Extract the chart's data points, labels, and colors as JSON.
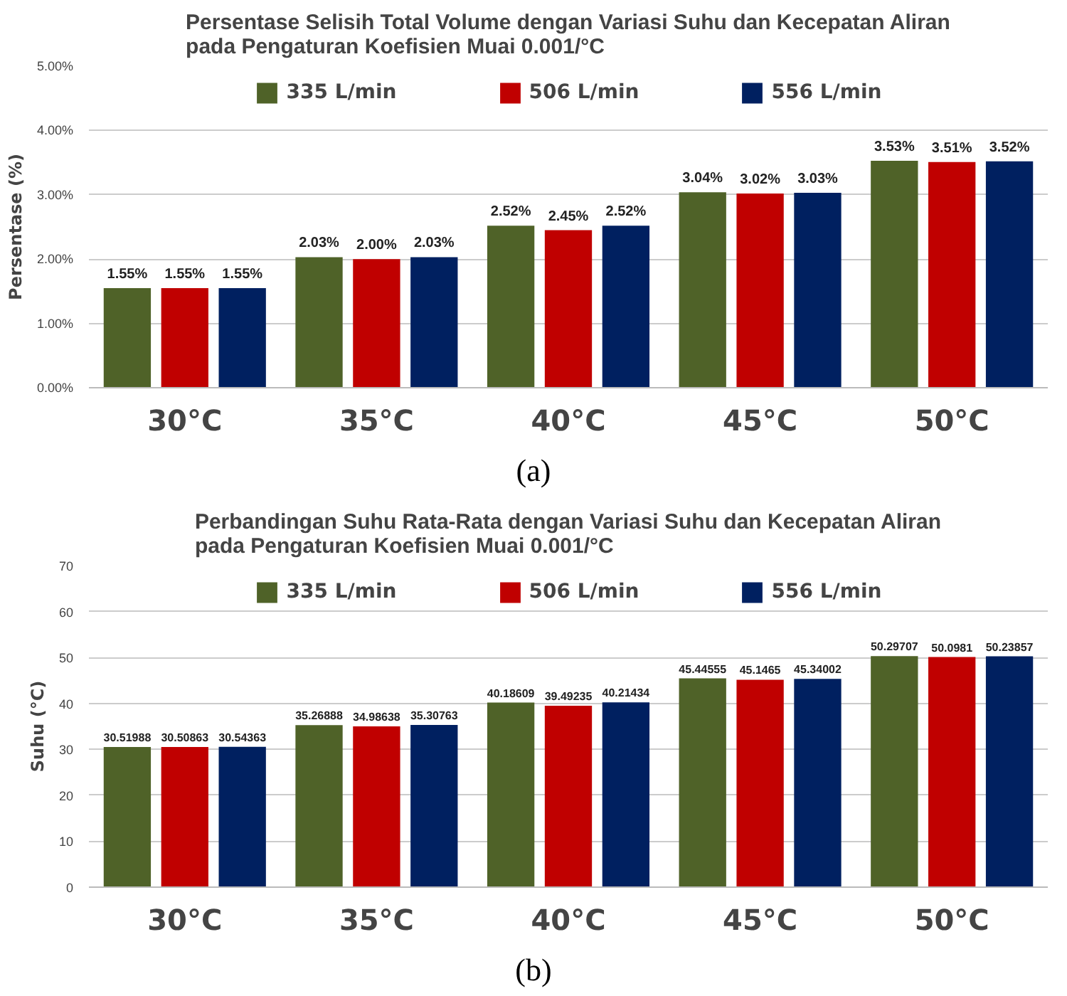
{
  "chart_data": [
    {
      "type": "bar",
      "title": "Persentase Selisih Total Volume dengan Variasi Suhu dan Kecepatan Aliran\npada Pengaturan Koefisien Muai 0.001/°C",
      "ylabel": "Persentase (%)",
      "categories": [
        "30°C",
        "35°C",
        "40°C",
        "45°C",
        "50°C"
      ],
      "series": [
        {
          "name": "335 L/min",
          "color": "#4f6228",
          "values": [
            1.55,
            2.03,
            2.52,
            3.04,
            3.53
          ],
          "value_labels": [
            "1.55%",
            "2.03%",
            "2.52%",
            "3.04%",
            "3.53%"
          ]
        },
        {
          "name": "506 L/min",
          "color": "#c00000",
          "values": [
            1.55,
            2.0,
            2.45,
            3.02,
            3.51
          ],
          "value_labels": [
            "1.55%",
            "2.00%",
            "2.45%",
            "3.02%",
            "3.51%"
          ]
        },
        {
          "name": "556 L/min",
          "color": "#002060",
          "values": [
            1.55,
            2.03,
            2.52,
            3.03,
            3.52
          ],
          "value_labels": [
            "1.55%",
            "2.03%",
            "2.52%",
            "3.03%",
            "3.52%"
          ]
        }
      ],
      "ylim": [
        0,
        5
      ],
      "yticks": [
        {
          "value": 0,
          "label": "0.00%"
        },
        {
          "value": 1,
          "label": "1.00%"
        },
        {
          "value": 2,
          "label": "2.00%"
        },
        {
          "value": 3,
          "label": "3.00%"
        },
        {
          "value": 4,
          "label": "4.00%"
        },
        {
          "value": 5,
          "label": "5.00%"
        }
      ],
      "grid": "y",
      "legend": "top",
      "annotations": [
        "(a)"
      ]
    },
    {
      "type": "bar",
      "title": "Perbandingan Suhu Rata-Rata dengan Variasi Suhu dan Kecepatan Aliran\npada Pengaturan Koefisien Muai 0.001/°C",
      "ylabel": "Suhu (°C)",
      "categories": [
        "30°C",
        "35°C",
        "40°C",
        "45°C",
        "50°C"
      ],
      "series": [
        {
          "name": "335 L/min",
          "color": "#4f6228",
          "values": [
            30.51988,
            35.26888,
            40.18609,
            45.44555,
            50.29707
          ]
        },
        {
          "name": "506 L/min",
          "color": "#c00000",
          "values": [
            30.50863,
            34.98638,
            39.49235,
            45.1465,
            50.0981
          ]
        },
        {
          "name": "556 L/min",
          "color": "#002060",
          "values": [
            30.54363,
            35.30763,
            40.21434,
            45.34002,
            50.23857
          ]
        }
      ],
      "ylim": [
        0,
        70
      ],
      "yticks": [
        0,
        10,
        20,
        30,
        40,
        50,
        60,
        70
      ],
      "grid": "y",
      "legend": "top",
      "data_labels": true,
      "annotations": [
        "(b)"
      ]
    }
  ]
}
